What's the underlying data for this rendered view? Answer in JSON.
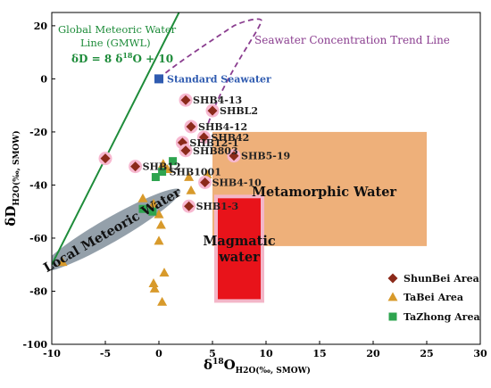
{
  "chart_data": {
    "type": "scatter",
    "title": "",
    "xlabel": {
      "base": "δ",
      "sup": "18",
      "main": "O",
      "sub": "H2O(‰, SMOW)"
    },
    "ylabel": {
      "main": "δD",
      "sub": "H2O(‰, SMOW)"
    },
    "xlim": [
      -10,
      30
    ],
    "ylim": [
      -100,
      25
    ],
    "xticks": [
      -10,
      -5,
      0,
      5,
      10,
      15,
      20,
      25,
      30
    ],
    "yticks": [
      -100,
      -80,
      -60,
      -40,
      -20,
      0,
      20
    ],
    "grid": false,
    "legend_position": "bottom-right",
    "gmwl": {
      "label_line1": "Global Meteoric Water",
      "label_line2": "Line (GMWL)",
      "equation": {
        "lhs": "δD = 8 δ",
        "sup": "18",
        "rhs": "O + 10"
      },
      "slope": 8,
      "intercept": 10,
      "color": "#1e8c3a"
    },
    "seawater_trend_label": "Seawater Concentration Trend Line",
    "seawater_trend_color": "#8a3d8f",
    "standard_seawater": {
      "label": "Standard Seawater",
      "x": 0,
      "y": 0,
      "color": "#2f5bb0"
    },
    "regions": [
      {
        "name": "Metamorphic Water",
        "x": [
          5,
          25
        ],
        "y": [
          -63,
          -20
        ],
        "color": "#eeb07a"
      },
      {
        "name": "Magmatic water",
        "x": [
          5.5,
          9.5
        ],
        "y": [
          -83,
          -45
        ],
        "color": "#e8131a"
      },
      {
        "name": "Local Meteoric Water",
        "center": [
          -4.5,
          -57
        ],
        "rx": 7.5,
        "ry": 4.5,
        "angle_deg": -30,
        "color": "#8e9ba5"
      }
    ],
    "series": [
      {
        "name": "ShunBei Area",
        "marker": "diamond",
        "color": "#8b2a1a",
        "points": [
          {
            "x": 2.5,
            "y": -8,
            "label": "SHB4-13"
          },
          {
            "x": 5,
            "y": -12,
            "label": "SHBL2"
          },
          {
            "x": 3,
            "y": -18,
            "label": "SHB4-12"
          },
          {
            "x": 4.2,
            "y": -22,
            "label": "SHB42"
          },
          {
            "x": 2.2,
            "y": -24,
            "label": "SHB12-1"
          },
          {
            "x": 2.5,
            "y": -27,
            "label": "SHB803"
          },
          {
            "x": 7,
            "y": -29,
            "label": "SHB5-19"
          },
          {
            "x": -5,
            "y": -30,
            "label": ""
          },
          {
            "x": -2.2,
            "y": -33,
            "label": "SHB12"
          },
          {
            "x": 4.3,
            "y": -39,
            "label": "SHB4-10"
          },
          {
            "x": 2.8,
            "y": -48,
            "label": "SHB1-3"
          }
        ]
      },
      {
        "name": "TaBei Area",
        "marker": "triangle",
        "color": "#d89a2b",
        "points": [
          {
            "x": -9,
            "y": -69
          },
          {
            "x": -1.5,
            "y": -45
          },
          {
            "x": -0.5,
            "y": -47
          },
          {
            "x": 0,
            "y": -51
          },
          {
            "x": 0.2,
            "y": -55
          },
          {
            "x": 0,
            "y": -61
          },
          {
            "x": 0.5,
            "y": -73
          },
          {
            "x": -0.5,
            "y": -77
          },
          {
            "x": -0.4,
            "y": -79
          },
          {
            "x": 0.3,
            "y": -84
          },
          {
            "x": 2.8,
            "y": -37
          },
          {
            "x": 3,
            "y": -42
          },
          {
            "x": 4.5,
            "y": -36
          },
          {
            "x": 0.8,
            "y": -34
          },
          {
            "x": 0.4,
            "y": -32
          }
        ]
      },
      {
        "name": "TaZhong Area",
        "marker": "square",
        "color": "#2ea44f",
        "points": [
          {
            "x": -0.3,
            "y": -37,
            "label": ""
          },
          {
            "x": 0.3,
            "y": -35,
            "label": "SHB1001"
          },
          {
            "x": 1.3,
            "y": -31,
            "label": ""
          },
          {
            "x": -1.5,
            "y": -49,
            "label": ""
          },
          {
            "x": -0.6,
            "y": -50,
            "label": ""
          }
        ]
      }
    ]
  }
}
